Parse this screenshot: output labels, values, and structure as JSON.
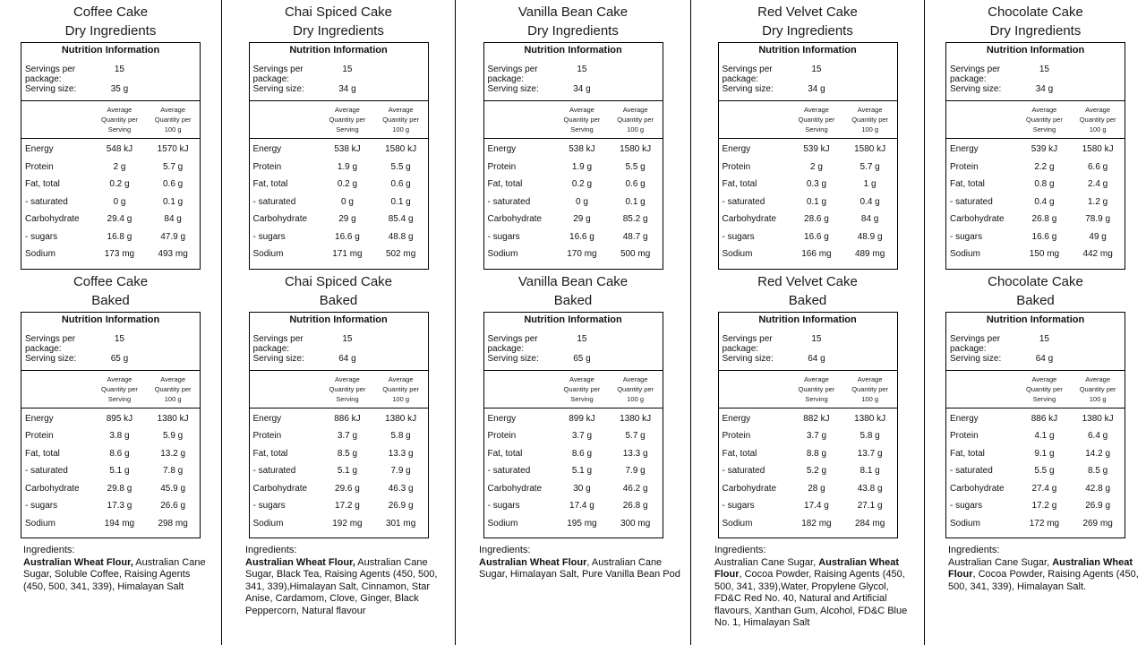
{
  "shared": {
    "nutrition_heading": "Nutrition Information",
    "servings_label": "Servings per package:",
    "serving_size_label": "Serving size:",
    "col_serving_header": [
      "Average",
      "Quantity per",
      "Serving"
    ],
    "col_100g_header": [
      "Average",
      "Quantity per",
      "100 g"
    ],
    "ingredients_heading": "Ingredients:",
    "nutrient_names": [
      "Energy",
      "Protein",
      "Fat, total",
      "- saturated",
      "Carbohydrate",
      "- sugars",
      "Sodium"
    ]
  },
  "columns": [
    {
      "cake": "Coffee Cake",
      "panels": [
        {
          "subtitle": "Dry Ingredients",
          "servings": "15",
          "serving_size": "35 g",
          "rows": [
            [
              "548 kJ",
              "1570 kJ"
            ],
            [
              "2 g",
              "5.7 g"
            ],
            [
              "0.2 g",
              "0.6 g"
            ],
            [
              "0 g",
              "0.1 g"
            ],
            [
              "29.4 g",
              "84 g"
            ],
            [
              "16.8 g",
              "47.9 g"
            ],
            [
              "173 mg",
              "493 mg"
            ]
          ]
        },
        {
          "subtitle": "Baked",
          "servings": "15",
          "serving_size": "65 g",
          "rows": [
            [
              "895 kJ",
              "1380 kJ"
            ],
            [
              "3.8 g",
              "5.9 g"
            ],
            [
              "8.6 g",
              "13.2 g"
            ],
            [
              "5.1 g",
              "7.8 g"
            ],
            [
              "29.8 g",
              "45.9 g"
            ],
            [
              "17.3 g",
              "26.6 g"
            ],
            [
              "194 mg",
              "298 mg"
            ]
          ]
        }
      ],
      "ingredients": [
        {
          "bold": true,
          "text": "Australian Wheat Flour,"
        },
        {
          "bold": false,
          "text": " Australian Cane Sugar, Soluble Coffee, Raising Agents (450, 500, 341, 339), Himalayan Salt"
        }
      ]
    },
    {
      "cake": "Chai Spiced Cake",
      "panels": [
        {
          "subtitle": "Dry Ingredients",
          "servings": "15",
          "serving_size": "34 g",
          "rows": [
            [
              "538 kJ",
              "1580 kJ"
            ],
            [
              "1.9 g",
              "5.5 g"
            ],
            [
              "0.2 g",
              "0.6 g"
            ],
            [
              "0 g",
              "0.1 g"
            ],
            [
              "29 g",
              "85.4 g"
            ],
            [
              "16.6 g",
              "48.8 g"
            ],
            [
              "171 mg",
              "502 mg"
            ]
          ]
        },
        {
          "subtitle": "Baked",
          "servings": "15",
          "serving_size": "64 g",
          "rows": [
            [
              "886 kJ",
              "1380 kJ"
            ],
            [
              "3.7 g",
              "5.8 g"
            ],
            [
              "8.5 g",
              "13.3 g"
            ],
            [
              "5.1 g",
              "7.9 g"
            ],
            [
              "29.6 g",
              "46.3 g"
            ],
            [
              "17.2 g",
              "26.9 g"
            ],
            [
              "192 mg",
              "301 mg"
            ]
          ]
        }
      ],
      "ingredients": [
        {
          "bold": true,
          "text": "Australian Wheat Flour,"
        },
        {
          "bold": false,
          "text": " Australian Cane Sugar, Black Tea, Raising Agents (450, 500, 341, 339),Himalayan Salt, Cinnamon, Star Anise, Cardamom, Clove, Ginger, Black Peppercorn, Natural flavour"
        }
      ]
    },
    {
      "cake": "Vanilla Bean Cake",
      "panels": [
        {
          "subtitle": "Dry Ingredients",
          "servings": "15",
          "serving_size": "34 g",
          "rows": [
            [
              "538 kJ",
              "1580 kJ"
            ],
            [
              "1.9 g",
              "5.5 g"
            ],
            [
              "0.2 g",
              "0.6 g"
            ],
            [
              "0 g",
              "0.1 g"
            ],
            [
              "29 g",
              "85.2 g"
            ],
            [
              "16.6 g",
              "48.7 g"
            ],
            [
              "170 mg",
              "500 mg"
            ]
          ]
        },
        {
          "subtitle": "Baked",
          "servings": "15",
          "serving_size": "65 g",
          "rows": [
            [
              "899 kJ",
              "1380 kJ"
            ],
            [
              "3.7 g",
              "5.7 g"
            ],
            [
              "8.6 g",
              "13.3 g"
            ],
            [
              "5.1 g",
              "7.9 g"
            ],
            [
              "30 g",
              "46.2 g"
            ],
            [
              "17.4 g",
              "26.8 g"
            ],
            [
              "195 mg",
              "300 mg"
            ]
          ]
        }
      ],
      "ingredients": [
        {
          "bold": true,
          "text": "Australian Wheat Flour"
        },
        {
          "bold": false,
          "text": ", Australian Cane Sugar, Himalayan Salt, Pure Vanilla Bean Pod"
        }
      ]
    },
    {
      "cake": "Red Velvet Cake",
      "panels": [
        {
          "subtitle": "Dry Ingredients",
          "servings": "15",
          "serving_size": "34 g",
          "rows": [
            [
              "539 kJ",
              "1580 kJ"
            ],
            [
              "2 g",
              "5.7 g"
            ],
            [
              "0.3 g",
              "1 g"
            ],
            [
              "0.1 g",
              "0.4 g"
            ],
            [
              "28.6 g",
              "84 g"
            ],
            [
              "16.6 g",
              "48.9 g"
            ],
            [
              "166 mg",
              "489 mg"
            ]
          ]
        },
        {
          "subtitle": "Baked",
          "servings": "15",
          "serving_size": "64 g",
          "rows": [
            [
              "882 kJ",
              "1380 kJ"
            ],
            [
              "3.7 g",
              "5.8 g"
            ],
            [
              "8.8 g",
              "13.7 g"
            ],
            [
              "5.2 g",
              "8.1 g"
            ],
            [
              "28 g",
              "43.8 g"
            ],
            [
              "17.4 g",
              "27.1 g"
            ],
            [
              "182 mg",
              "284 mg"
            ]
          ]
        }
      ],
      "ingredients": [
        {
          "bold": false,
          "text": "Australian Cane Sugar, "
        },
        {
          "bold": true,
          "text": "Australian Wheat Flour"
        },
        {
          "bold": false,
          "text": ", Cocoa Powder, Raising Agents (450, 500, 341, 339),Water, Propylene Glycol, FD&C Red No. 40, Natural and Artificial flavours, Xanthan Gum, Alcohol, FD&C Blue No. 1, Himalayan Salt"
        }
      ]
    },
    {
      "cake": "Chocolate Cake",
      "panels": [
        {
          "subtitle": "Dry Ingredients",
          "servings": "15",
          "serving_size": "34 g",
          "rows": [
            [
              "539 kJ",
              "1580 kJ"
            ],
            [
              "2.2 g",
              "6.6 g"
            ],
            [
              "0.8 g",
              "2.4 g"
            ],
            [
              "0.4 g",
              "1.2 g"
            ],
            [
              "26.8 g",
              "78.9 g"
            ],
            [
              "16.6 g",
              "49 g"
            ],
            [
              "150 mg",
              "442 mg"
            ]
          ]
        },
        {
          "subtitle": "Baked",
          "servings": "15",
          "serving_size": "64 g",
          "rows": [
            [
              "886 kJ",
              "1380 kJ"
            ],
            [
              "4.1 g",
              "6.4 g"
            ],
            [
              "9.1 g",
              "14.2 g"
            ],
            [
              "5.5 g",
              "8.5 g"
            ],
            [
              "27.4 g",
              "42.8 g"
            ],
            [
              "17.2 g",
              "26.9 g"
            ],
            [
              "172 mg",
              "269 mg"
            ]
          ]
        }
      ],
      "ingredients": [
        {
          "bold": false,
          "text": "Australian Cane Sugar, "
        },
        {
          "bold": true,
          "text": "Australian Wheat Flour"
        },
        {
          "bold": false,
          "text": ", Cocoa Powder, Raising Agents (450, 500, 341, 339), Himalayan Salt."
        }
      ]
    }
  ]
}
